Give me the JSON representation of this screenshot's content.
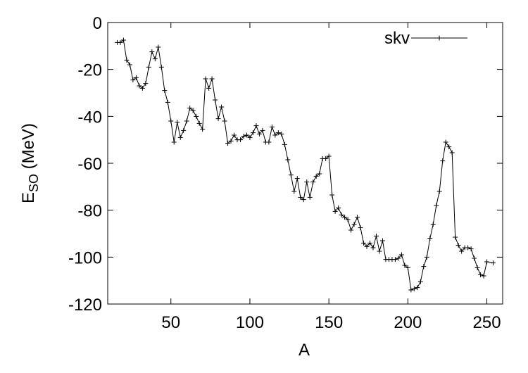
{
  "chart_data": {
    "type": "line",
    "xlabel": "A",
    "ylabel": {
      "main": "E",
      "sub": "SO",
      "rest": " (MeV)"
    },
    "xlim": [
      10,
      260
    ],
    "xticks": [
      50,
      100,
      150,
      200,
      250
    ],
    "ylim": [
      -120,
      0
    ],
    "yticks": [
      -120,
      -100,
      -80,
      -60,
      -40,
      -20,
      0
    ],
    "legend": "top-right",
    "series": [
      {
        "name": "skv",
        "color": "#000000",
        "x": [
          16,
          18,
          20,
          22,
          24,
          26,
          28,
          30,
          32,
          34,
          36,
          38,
          40,
          42,
          44,
          46,
          48,
          50,
          52,
          54,
          56,
          58,
          60,
          62,
          64,
          66,
          68,
          70,
          72,
          74,
          76,
          78,
          80,
          82,
          84,
          86,
          88,
          90,
          92,
          94,
          96,
          98,
          100,
          102,
          104,
          106,
          108,
          110,
          112,
          114,
          116,
          118,
          120,
          122,
          124,
          126,
          128,
          130,
          132,
          134,
          136,
          138,
          140,
          142,
          144,
          146,
          148,
          150,
          152,
          154,
          156,
          158,
          160,
          162,
          164,
          166,
          168,
          170,
          172,
          174,
          176,
          178,
          180,
          182,
          184,
          186,
          188,
          190,
          192,
          194,
          196,
          198,
          200,
          202,
          204,
          206,
          208,
          210,
          212,
          214,
          216,
          218,
          220,
          222,
          224,
          226,
          228,
          230,
          232,
          234,
          236,
          238,
          240,
          242,
          244,
          246,
          248,
          250,
          254
        ],
        "values": [
          -8.5,
          -8.5,
          -7.5,
          -16,
          -18,
          -24.5,
          -23.5,
          -27,
          -28,
          -26,
          -19,
          -12.5,
          -15.5,
          -10.5,
          -19,
          -29,
          -34,
          -42,
          -51,
          -42.5,
          -49,
          -46,
          -42,
          -36.5,
          -37.5,
          -40,
          -43,
          -45.5,
          -24,
          -28,
          -24,
          -33,
          -41,
          -36,
          -42,
          -51.5,
          -50.5,
          -48,
          -50,
          -50,
          -48.5,
          -48,
          -49,
          -47,
          -44,
          -47.5,
          -46,
          -51,
          -51,
          -44.5,
          -48,
          -47,
          -47.5,
          -52,
          -58.5,
          -65,
          -72,
          -66.5,
          -74.5,
          -75.5,
          -68,
          -74.5,
          -68,
          -65.5,
          -64.5,
          -58,
          -58,
          -57,
          -73.5,
          -80.5,
          -79,
          -82,
          -83,
          -84,
          -88.5,
          -86,
          -83,
          -87.5,
          -94,
          -95.5,
          -94,
          -96,
          -91,
          -97.5,
          -93,
          -101,
          -101,
          -101,
          -101,
          -100.5,
          -99,
          -103.5,
          -104.5,
          -114,
          -113.5,
          -113,
          -110.5,
          -104,
          -100,
          -92,
          -86,
          -78,
          -72,
          -59,
          -51,
          -53,
          -55.5,
          -91.5,
          -95,
          -97.5,
          -96,
          -96,
          -96.5,
          -100.5,
          -104.5,
          -107.5,
          -108,
          -102,
          -102.5
        ]
      }
    ]
  }
}
